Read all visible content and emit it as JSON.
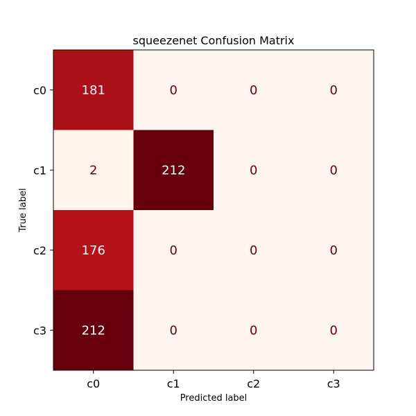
{
  "chart_data": {
    "type": "heatmap",
    "title": "squeezenet Confusion Matrix",
    "xlabel": "Predicted label",
    "ylabel": "True label",
    "x_categories": [
      "c0",
      "c1",
      "c2",
      "c3"
    ],
    "y_categories": [
      "c0",
      "c1",
      "c2",
      "c3"
    ],
    "values": [
      [
        181,
        0,
        0,
        0
      ],
      [
        2,
        212,
        0,
        0
      ],
      [
        176,
        0,
        0,
        0
      ],
      [
        212,
        0,
        0,
        0
      ]
    ],
    "colormap": "Reds",
    "color_min": "#fff5f0",
    "color_max": "#67000d",
    "text_dark": "#67000d",
    "text_light": "#ffffff",
    "vmin": 0,
    "vmax": 212,
    "grid": false,
    "legend": "none"
  }
}
